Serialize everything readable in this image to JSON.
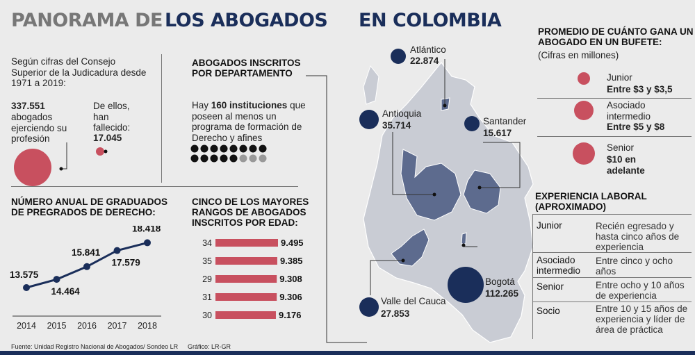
{
  "header": {
    "title_part1": "PANORAMA DE",
    "title_part2": "LOS ABOGADOS",
    "title_part3": "EN COLOMBIA"
  },
  "intro": {
    "text": "Según cifras del Consejo Superior de la Judicadura desde 1971 a 2019:",
    "active_value": "337.551",
    "active_text": "abogados ejerciendo su profesión",
    "deceased_text": "De ellos, han fallecido:",
    "deceased_value": "17.045"
  },
  "institutions": {
    "heading": "ABOGADOS INSCRITOS POR DEPARTAMENTO",
    "text_pre": "Hay ",
    "text_bold": "160 instituciones",
    "text_post": " que poseen al menos un programa de formación de Derecho y afines",
    "dots_total": 16,
    "dots_dark": 13
  },
  "graduates": {
    "heading": "NÚMERO ANUAL DE GRADUADOS DE PREGRADOS DE DERECHO:"
  },
  "age_ranges": {
    "heading": "CINCO DE LOS MAYORES RANGOS DE ABOGADOS INSCRITOS POR EDAD:"
  },
  "salary": {
    "heading": "PROMEDIO DE CUÁNTO GANA UN ABOGADO EN UN BUFETE:",
    "subheading": "(Cifras en millones)",
    "items": [
      {
        "label": "Junior",
        "value": "Entre $3 y $3,5"
      },
      {
        "label": "Asociado intermedio",
        "value": "Entre $5 y $8"
      },
      {
        "label": "Senior",
        "value": "$10 en adelante"
      }
    ]
  },
  "experience": {
    "heading": "EXPERIENCIA LABORAL (APROXIMADO)",
    "rows": [
      {
        "level": "Junior",
        "desc": "Recién egresado y hasta cinco años de experiencia"
      },
      {
        "level": "Asociado intermedio",
        "desc": "Entre cinco y ocho años"
      },
      {
        "level": "Senior",
        "desc": "Entre ocho y 10 años de experiencia"
      },
      {
        "level": "Socio",
        "desc": "Entre 10 y 15 años de experiencia y líder de área de práctica"
      }
    ]
  },
  "map_labels": [
    {
      "name": "Atlántico",
      "value": "22.874"
    },
    {
      "name": "Antioquia",
      "value": "35.714"
    },
    {
      "name": "Santander",
      "value": "15.617"
    },
    {
      "name": "Valle del Cauca",
      "value": "27.853"
    },
    {
      "name": "Bogotá",
      "value": "112.265"
    }
  ],
  "footer": {
    "source": "Fuente: Unidad Registro Nacional de Abogados/ Sondeo LR",
    "credit": "Gráfico: LR-GR"
  },
  "colors": {
    "navy": "#1a2e5a",
    "red": "#c8505f",
    "grey_title": "#777777",
    "map_fill": "#c9ccd4",
    "map_highlight": "#5d6b8e"
  },
  "chart_data": [
    {
      "type": "line",
      "x": [
        "2014",
        "2015",
        "2016",
        "2017",
        "2018"
      ],
      "values": [
        13575,
        14464,
        15841,
        17579,
        18418
      ],
      "value_labels": [
        "13.575",
        "14.464",
        "15.841",
        "17.579",
        "18.418"
      ],
      "ylim": [
        12000,
        19500
      ]
    },
    {
      "type": "bar",
      "orientation": "horizontal",
      "categories": [
        "34",
        "35",
        "29",
        "31",
        "30"
      ],
      "values": [
        9495,
        9385,
        9308,
        9306,
        9176
      ],
      "value_labels": [
        "9.495",
        "9.385",
        "9.308",
        "9.306",
        "9.176"
      ]
    }
  ]
}
